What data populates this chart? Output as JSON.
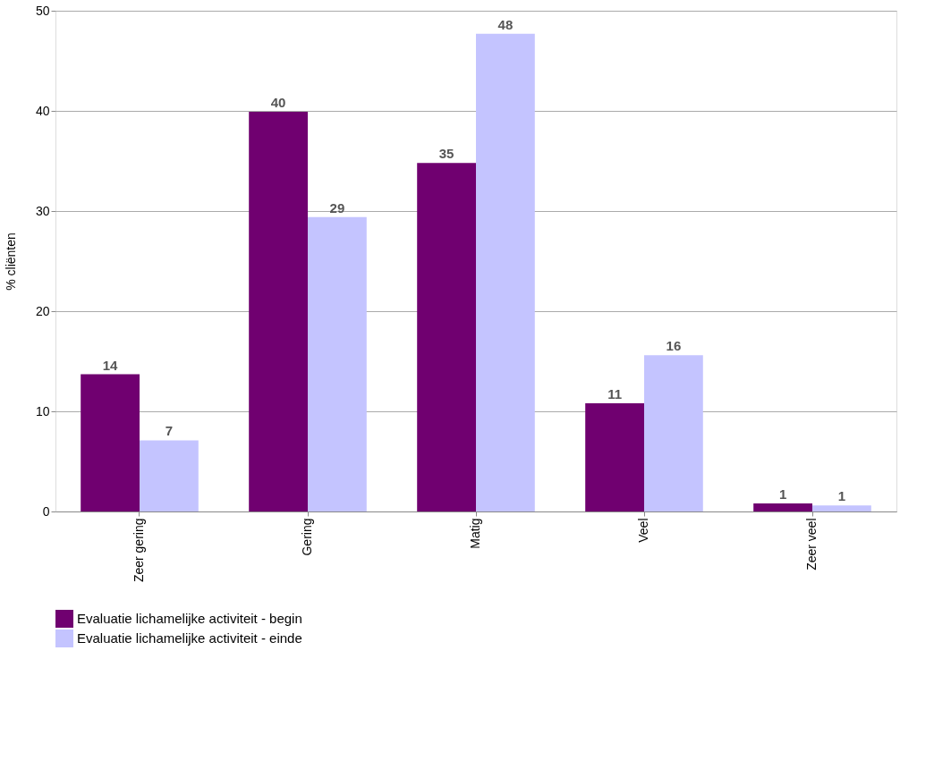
{
  "chart_data": {
    "type": "bar",
    "ylabel": "% cliënten",
    "categories": [
      "Zeer gering",
      "Gering",
      "Matig",
      "Veel",
      "Zeer veel"
    ],
    "series": [
      {
        "name": "Evaluatie lichamelijke activiteit - begin",
        "color": "#700070",
        "values": [
          13.7,
          39.9,
          34.8,
          10.8,
          0.8
        ],
        "value_labels": [
          "14",
          "40",
          "35",
          "11",
          "1"
        ]
      },
      {
        "name": "Evaluatie lichamelijke activiteit - einde",
        "color": "#c4c4ff",
        "values": [
          7.1,
          29.4,
          47.7,
          15.6,
          0.6
        ],
        "value_labels": [
          "7",
          "29",
          "48",
          "16",
          "1"
        ]
      }
    ],
    "ylim": [
      0,
      50
    ],
    "yticks": [
      0,
      10,
      20,
      30,
      40,
      50
    ],
    "grid": "y",
    "legend": "bottom left"
  }
}
